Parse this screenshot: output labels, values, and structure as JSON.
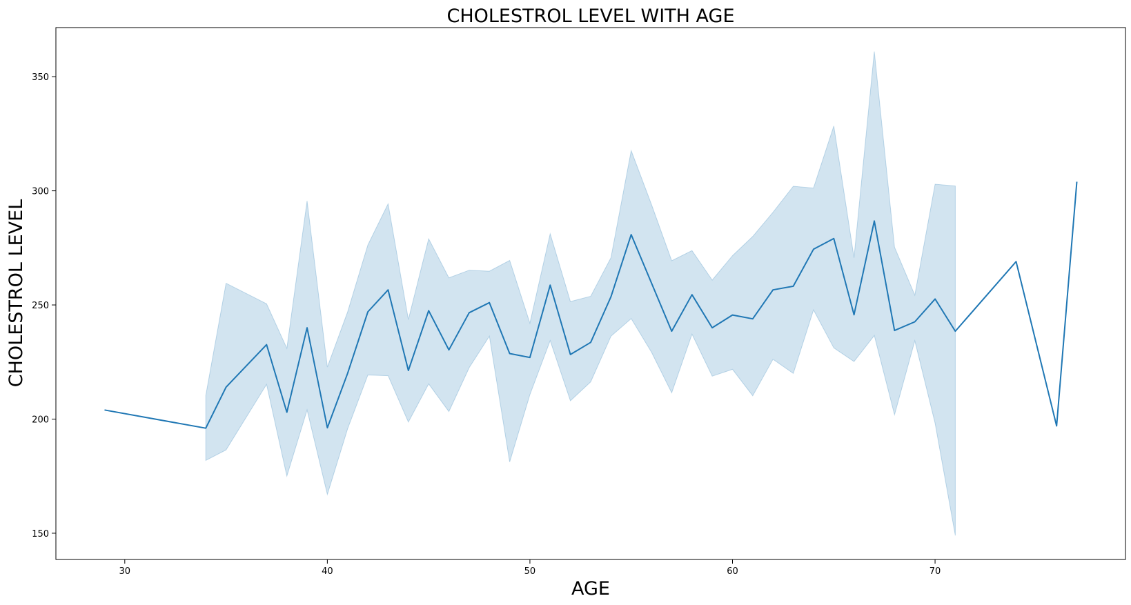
{
  "chart_data": {
    "type": "line",
    "title": "CHOLESTROL LEVEL  WITH AGE",
    "xlabel": "AGE",
    "ylabel": "CHOLESTROL LEVEL",
    "xlim": [
      26.6,
      79.4
    ],
    "ylim": [
      138.5,
      371.5
    ],
    "x_ticks": [
      30,
      40,
      50,
      60,
      70
    ],
    "y_ticks": [
      150,
      200,
      250,
      300,
      350
    ],
    "grid": false,
    "line_color": "#1f77b4",
    "band_color": "#1f77b4",
    "series": [
      {
        "x": [
          29,
          34,
          35,
          37,
          38,
          39,
          40,
          41,
          42,
          43,
          44,
          45,
          46,
          47,
          48,
          49,
          50,
          51,
          52,
          53,
          54,
          55,
          56,
          57,
          58,
          59,
          60,
          61,
          62,
          63,
          64,
          65,
          66,
          67,
          68,
          69,
          70,
          71,
          74,
          76,
          77
        ],
        "y": [
          204,
          196,
          214,
          232.6,
          203,
          240,
          196.2,
          220,
          247,
          256.6,
          221.3,
          247.5,
          230.3,
          246.6,
          251,
          228.7,
          227,
          258.7,
          228.3,
          233.6,
          253.6,
          280.8,
          259.6,
          238.5,
          254.5,
          240,
          245.6,
          243.9,
          256.6,
          258.2,
          274.4,
          279.1,
          245.7,
          286.8,
          238.8,
          242.6,
          252.6,
          238.5,
          269,
          197,
          304
        ],
        "ci_lower": [
          null,
          181.9,
          186.5,
          215.2,
          175,
          204,
          167,
          195.7,
          219.3,
          219,
          198.7,
          215.4,
          203.3,
          222.5,
          236.3,
          181.2,
          210.7,
          234.4,
          208,
          216.3,
          236.3,
          244,
          229.3,
          211.5,
          237.2,
          218.8,
          221.8,
          210.2,
          226.2,
          220,
          247.8,
          231.2,
          225.2,
          236.6,
          201.9,
          234.3,
          198.2,
          149,
          null,
          null,
          null
        ],
        "ci_upper": [
          null,
          210.3,
          259.5,
          250.5,
          231,
          295.6,
          222.8,
          246.9,
          276.3,
          294.3,
          243.6,
          279,
          261.9,
          265.2,
          264.8,
          269.5,
          242,
          281.2,
          251.5,
          253.8,
          270.7,
          317.6,
          294,
          269.4,
          273.8,
          260.9,
          271.6,
          280,
          290.6,
          302,
          301.2,
          328.4,
          270.7,
          361,
          275.3,
          254.3,
          302.9,
          302.1,
          null,
          null,
          null
        ]
      }
    ]
  }
}
